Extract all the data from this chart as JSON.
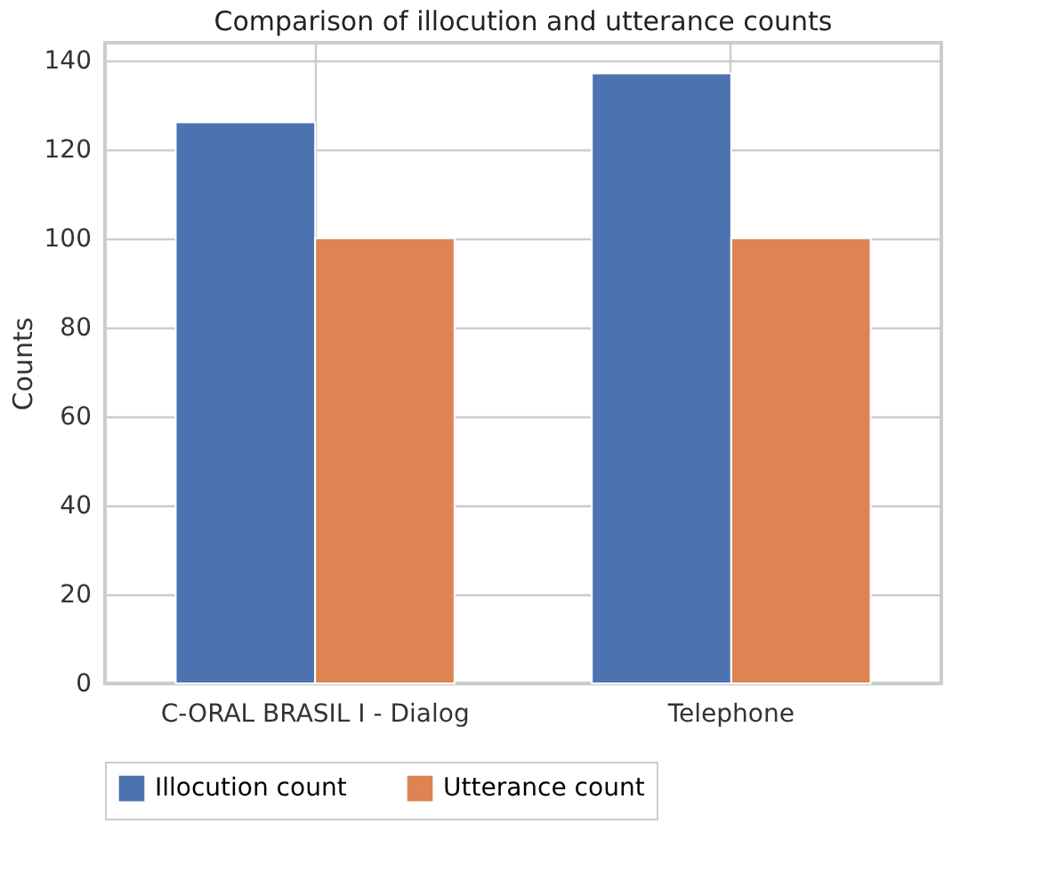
{
  "chart_data": {
    "type": "bar",
    "title": "Comparison of illocution and utterance counts",
    "ylabel": "Counts",
    "categories": [
      "C-ORAL BRASIL I - Dialog",
      "Telephone"
    ],
    "series": [
      {
        "name": "Illocution count",
        "color": "#4c72b0",
        "values": [
          126,
          137
        ]
      },
      {
        "name": "Utterance count",
        "color": "#dd8452",
        "values": [
          100,
          100
        ]
      }
    ],
    "ylim": [
      0,
      143.9
    ],
    "yticks": [
      0,
      20,
      40,
      60,
      80,
      100,
      120,
      140
    ],
    "grid": true,
    "legend": "bottom"
  }
}
